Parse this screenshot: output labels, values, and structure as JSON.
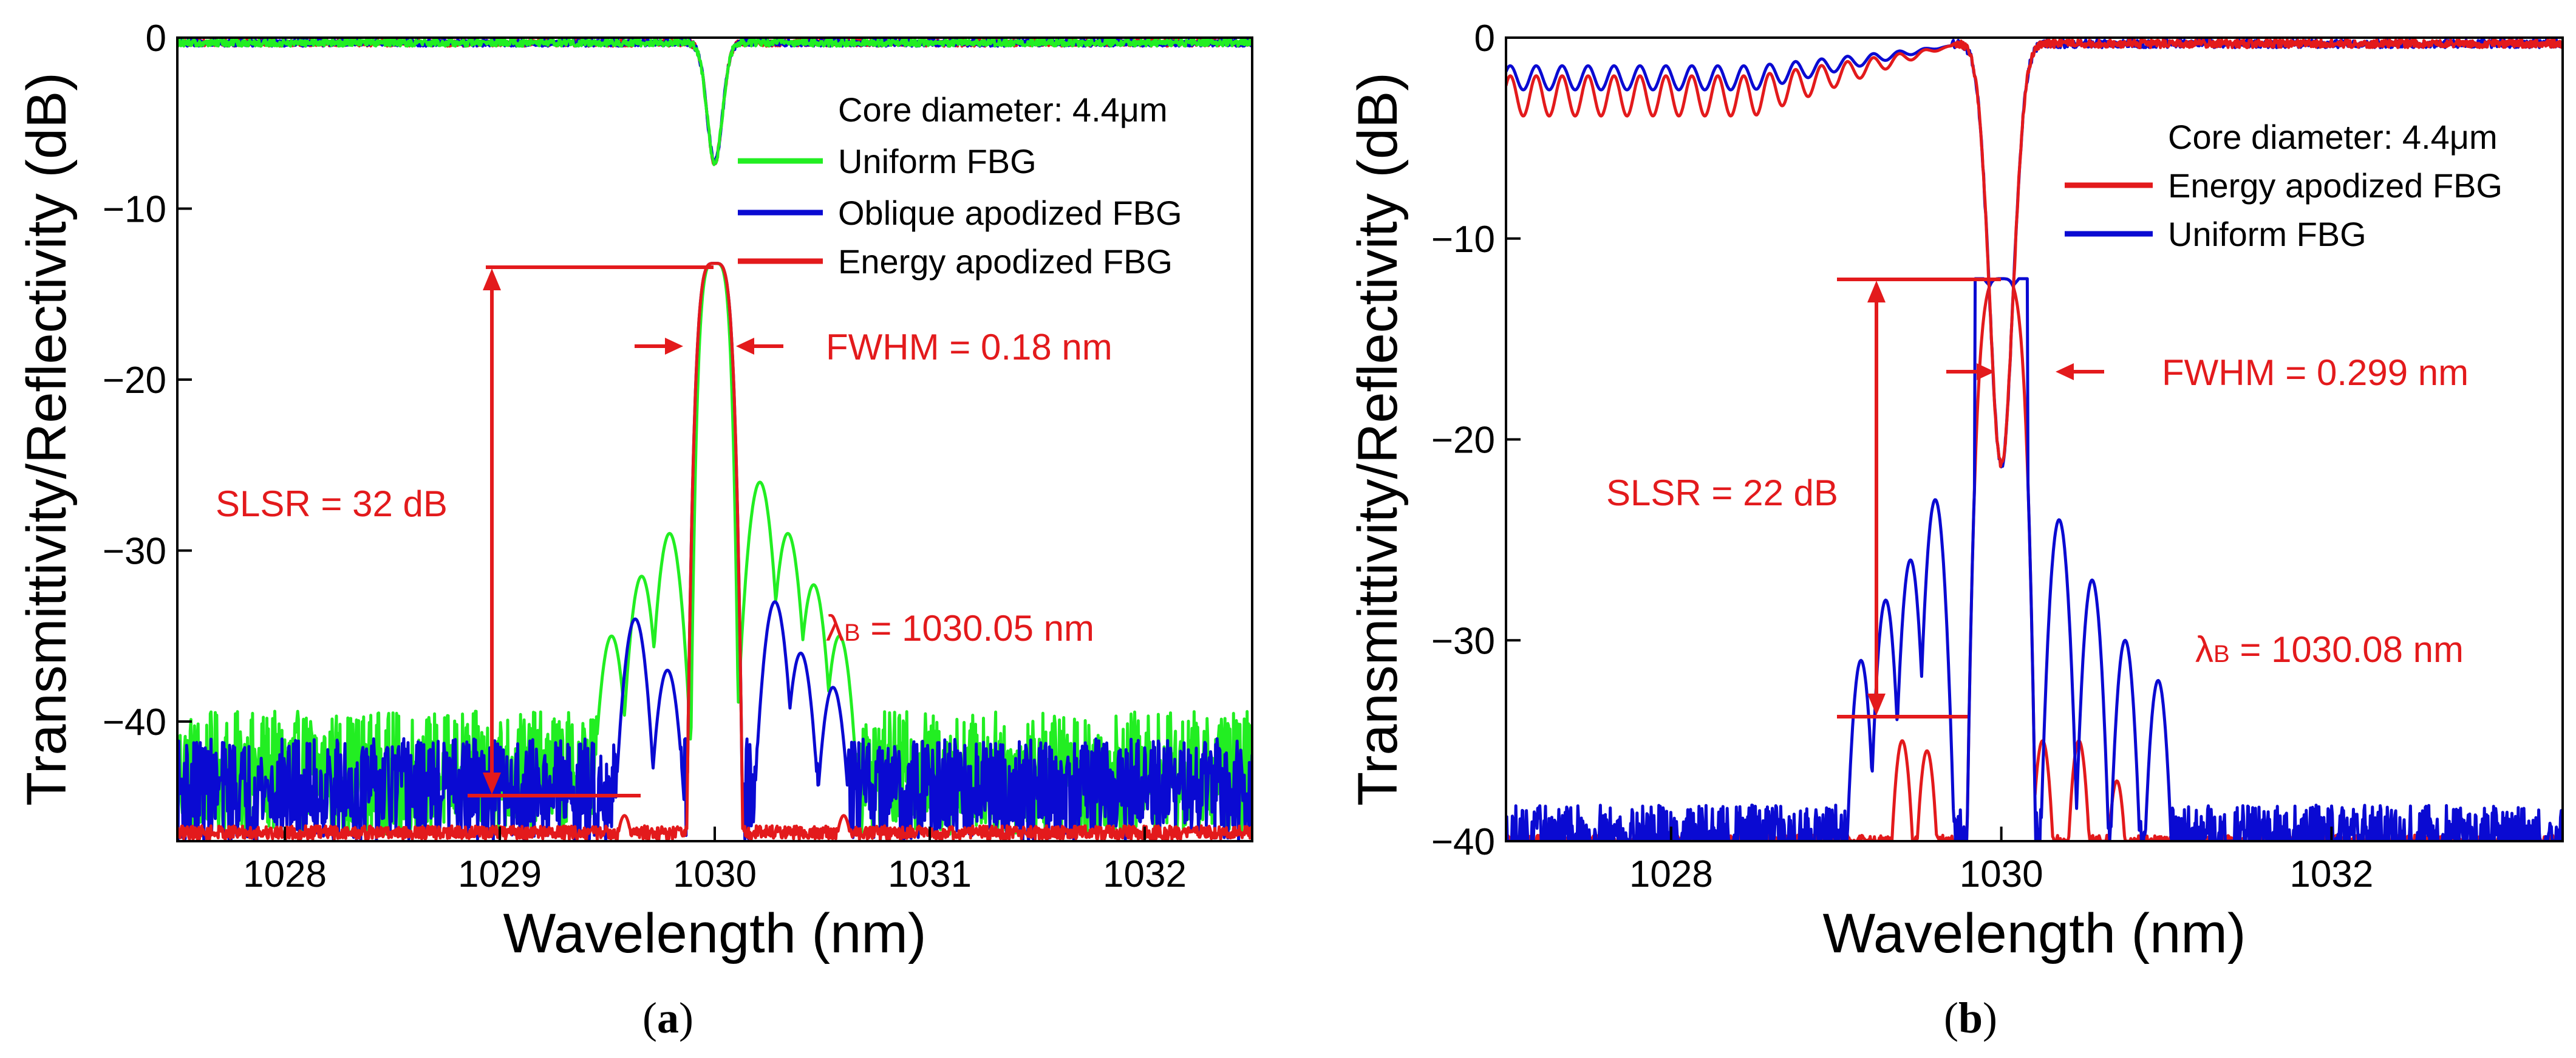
{
  "figure": {
    "panel_labels": [
      {
        "prefix": "(",
        "letter": "a",
        "suffix": ")"
      },
      {
        "prefix": "(",
        "letter": "b",
        "suffix": ")"
      }
    ]
  },
  "colors": {
    "green": "#22ee22",
    "blue": "#0a0ad2",
    "red": "#e31a1c",
    "annotation": "#e31a1c",
    "axis": "#000000"
  },
  "chart_data": [
    {
      "type": "line",
      "panel": "a",
      "xlabel": "Wavelength (nm)",
      "ylabel": "Transmittivity/Reflectivity (dB)",
      "xlim": [
        1027.5,
        1032.5
      ],
      "ylim": [
        -47,
        0
      ],
      "xticks": [
        1028,
        1029,
        1030,
        1031,
        1032
      ],
      "xtick_labels": [
        "1028",
        "1029",
        "1030",
        "1031",
        "1032"
      ],
      "yticks": [
        0,
        -10,
        -20,
        -30,
        -40
      ],
      "ytick_labels": [
        "0",
        "−10",
        "−20",
        "−30",
        "−40"
      ],
      "legend": {
        "title": "Core diameter: 4.4μm",
        "entries": [
          {
            "label": "Uniform FBG",
            "color": "#22ee22"
          },
          {
            "label": "Oblique apodized FBG",
            "color": "#0a0ad2"
          },
          {
            "label": "Energy apodized FBG",
            "color": "#e31a1c"
          }
        ]
      },
      "center": 1030.0,
      "peak_reflectivity": -13.2,
      "transmission_dip": -7.0,
      "series": [
        {
          "name": "Uniform FBG",
          "color": "#22ee22",
          "width_nm": 0.16,
          "noise_floor": -43,
          "noise_amp": 3.6,
          "sidelobes": [
            {
              "x": 1029.79,
              "y": -29
            },
            {
              "x": 1029.66,
              "y": -31.5
            },
            {
              "x": 1029.52,
              "y": -35
            },
            {
              "x": 1030.21,
              "y": -26
            },
            {
              "x": 1030.34,
              "y": -29
            },
            {
              "x": 1030.46,
              "y": -32
            },
            {
              "x": 1030.58,
              "y": -35
            }
          ]
        },
        {
          "name": "Oblique apodized FBG",
          "color": "#0a0ad2",
          "width_nm": 0.18,
          "noise_floor": -44,
          "noise_amp": 3.0,
          "sidelobes": [
            {
              "x": 1029.63,
              "y": -34
            },
            {
              "x": 1029.78,
              "y": -37
            },
            {
              "x": 1030.28,
              "y": -33
            },
            {
              "x": 1030.4,
              "y": -36
            },
            {
              "x": 1030.55,
              "y": -38
            }
          ]
        },
        {
          "name": "Energy apodized FBG",
          "color": "#e31a1c",
          "width_nm": 0.18,
          "noise_floor": -46.5,
          "noise_amp": 0.4,
          "sidelobes": [
            {
              "x": 1029.58,
              "y": -45.5
            },
            {
              "x": 1030.6,
              "y": -45.5
            }
          ]
        }
      ],
      "annotations": {
        "fwhm": {
          "prefix": "FWHM = ",
          "value": 0.18,
          "unit": "nm",
          "text": "FWHM = 0.18 nm"
        },
        "slsr": {
          "prefix": "SLSR = ",
          "value": 32,
          "unit": "dB",
          "text": "SLSR = 32 dB"
        },
        "bragg": {
          "symbol": "λ",
          "subscript": "B",
          "rest": " = 1030.05 nm",
          "value": 1030.05,
          "unit": "nm"
        }
      }
    },
    {
      "type": "line",
      "panel": "b",
      "xlabel": "Wavelength (nm)",
      "ylabel": "Transmittivity/Reflectivity (dB)",
      "xlim": [
        1027.0,
        1033.4
      ],
      "ylim": [
        -40,
        0
      ],
      "xticks": [
        1028,
        1030,
        1032
      ],
      "xtick_labels": [
        "1028",
        "1030",
        "1032"
      ],
      "yticks": [
        0,
        -10,
        -20,
        -30,
        -40
      ],
      "ytick_labels": [
        "0",
        "−10",
        "−20",
        "−30",
        "−40"
      ],
      "legend": {
        "title": "Core diameter: 4.4μm",
        "entries": [
          {
            "label": "Energy apodized FBG",
            "color": "#e31a1c"
          },
          {
            "label": "Uniform FBG",
            "color": "#0a0ad2"
          }
        ]
      },
      "center": 1030.0,
      "peak_reflectivity": -12.0,
      "transmission_dip": -21.0,
      "series": [
        {
          "name": "Energy apodized FBG",
          "color": "#e31a1c",
          "width_nm": 0.3,
          "noise_floor": -40,
          "noise_amp": 0.3,
          "sidelobes": [
            {
              "x": 1029.4,
              "y": -35
            },
            {
              "x": 1029.55,
              "y": -35.5
            },
            {
              "x": 1030.25,
              "y": -35
            },
            {
              "x": 1030.47,
              "y": -35
            },
            {
              "x": 1030.7,
              "y": -37
            }
          ]
        },
        {
          "name": "Uniform FBG",
          "color": "#0a0ad2",
          "width_nm": 0.3,
          "noise_floor": -39.8,
          "noise_amp": 1.6,
          "sidelobes": [
            {
              "x": 1029.6,
              "y": -23
            },
            {
              "x": 1029.45,
              "y": -26
            },
            {
              "x": 1029.3,
              "y": -28
            },
            {
              "x": 1029.15,
              "y": -31
            },
            {
              "x": 1030.35,
              "y": -24
            },
            {
              "x": 1030.55,
              "y": -27
            },
            {
              "x": 1030.75,
              "y": -30
            },
            {
              "x": 1030.95,
              "y": -32
            }
          ]
        }
      ],
      "annotations": {
        "fwhm": {
          "prefix": "FWHM = ",
          "value": 0.299,
          "unit": "nm",
          "text": "FWHM = 0.299 nm"
        },
        "slsr": {
          "prefix": "SLSR = ",
          "value": 22,
          "unit": "dB",
          "text": "SLSR = 22 dB"
        },
        "bragg": {
          "symbol": "λ",
          "subscript": "B",
          "rest": " = 1030.08 nm",
          "value": 1030.08,
          "unit": "nm"
        }
      }
    }
  ]
}
